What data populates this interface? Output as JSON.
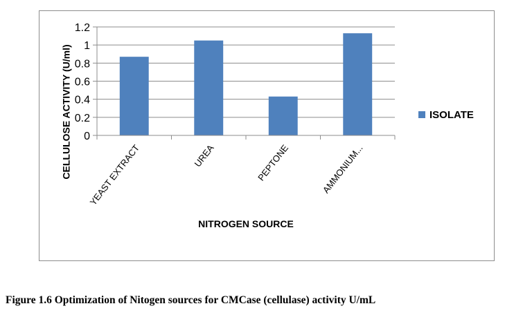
{
  "chart_data": {
    "type": "bar",
    "categories": [
      "YEAST EXTRACT",
      "UREA",
      "PEPTONE",
      "AMMONIUM..."
    ],
    "series": [
      {
        "name": "ISOLATE",
        "values": [
          0.87,
          1.05,
          0.43,
          1.13
        ],
        "color": "#4f81bd"
      }
    ],
    "title": "",
    "xlabel": "NITROGEN SOURCE",
    "ylabel": "CELLULOSE ACTIVITY (U/ml)",
    "ylim": [
      0,
      1.2
    ],
    "yticks": [
      0,
      0.2,
      0.4,
      0.6,
      0.8,
      1,
      1.2
    ],
    "ytick_labels": [
      "0",
      "0.2",
      "0.4",
      "0.6",
      "0.8",
      "1",
      "1.2"
    ],
    "grid": true,
    "legend_position": "right"
  },
  "caption": "Figure 1.6 Optimization  of Nitogen sources for CMCase (cellulase) activity U/mL"
}
